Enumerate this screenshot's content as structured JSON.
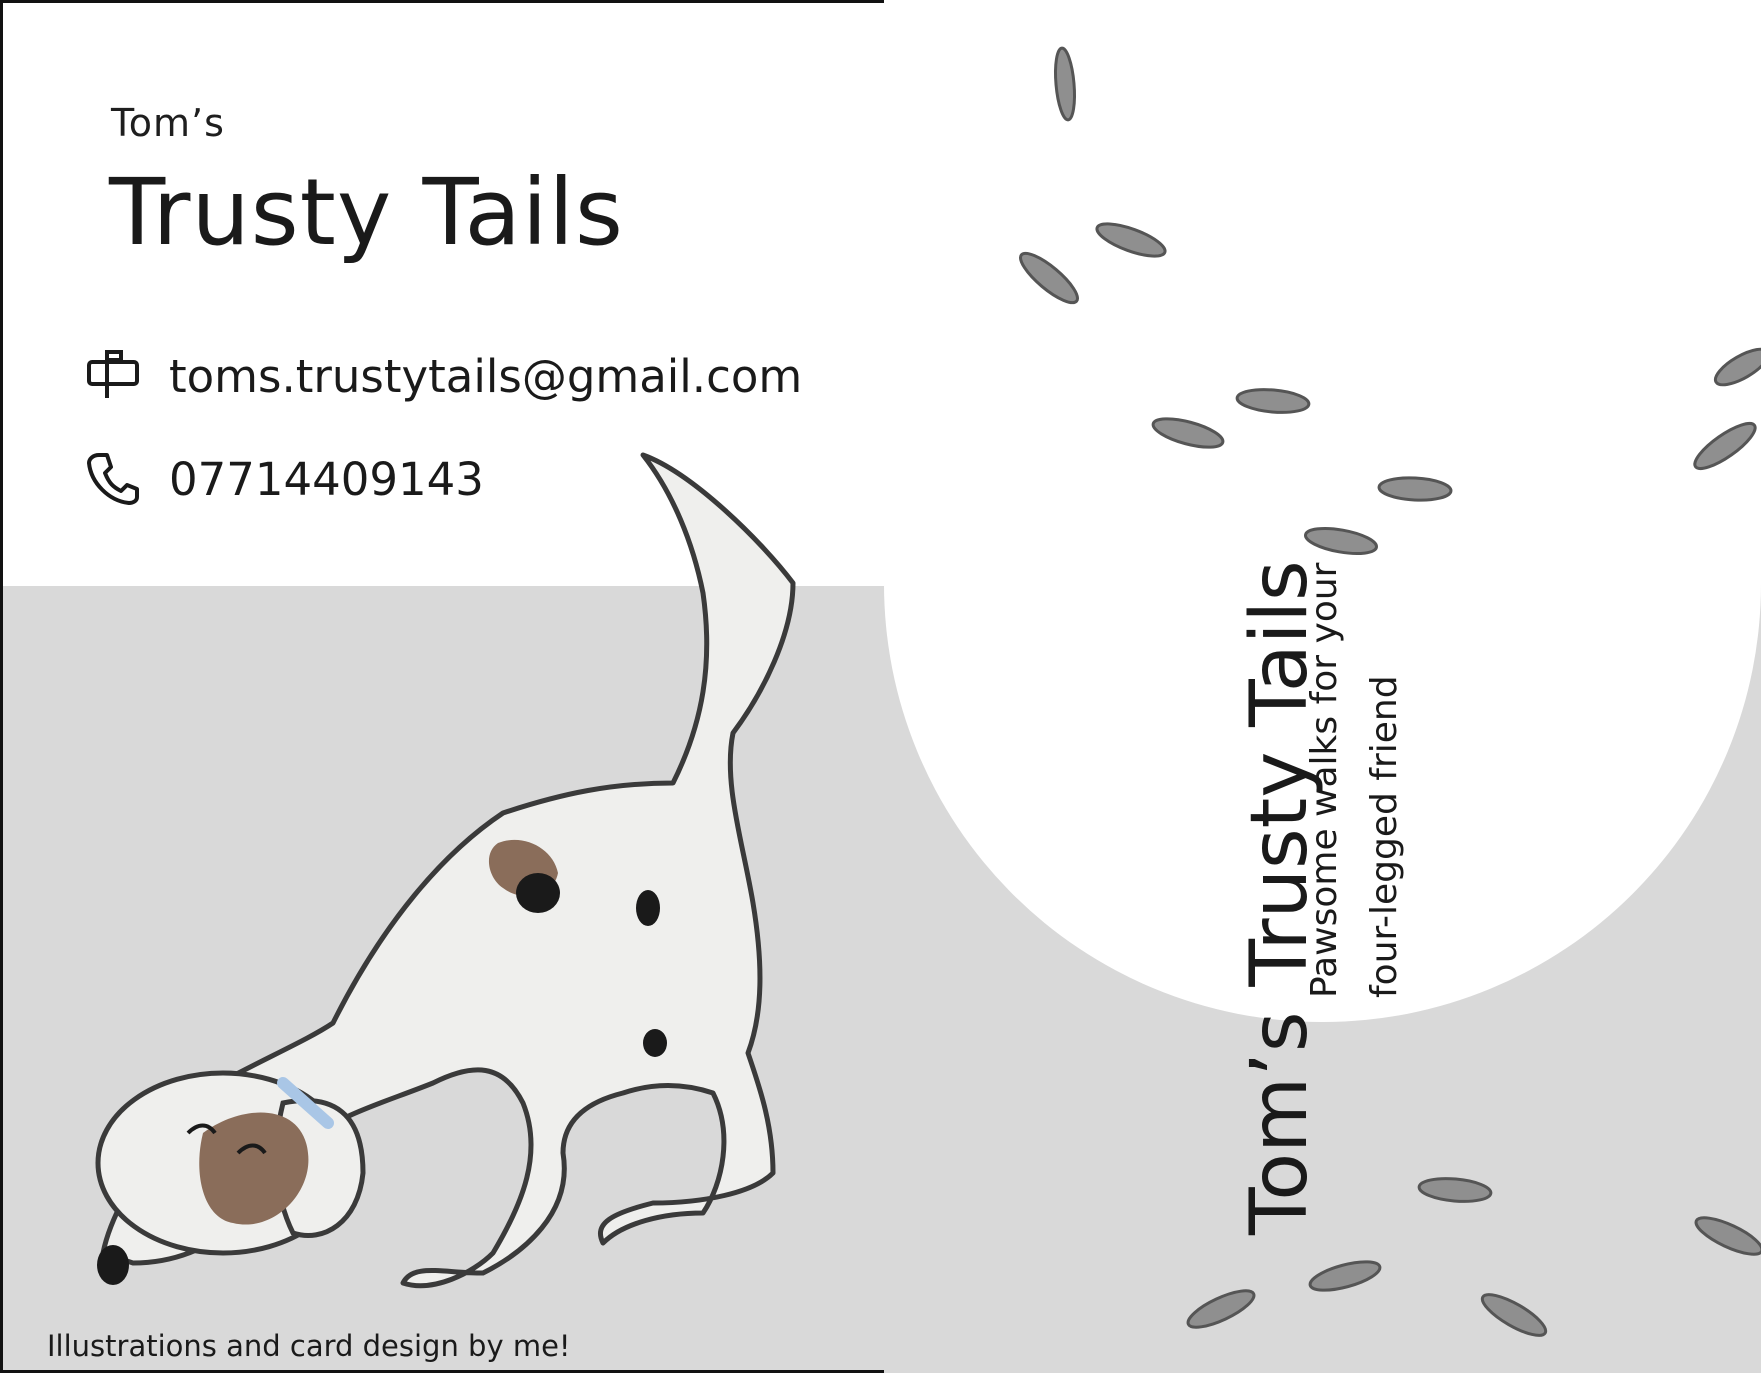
{
  "front": {
    "brand_small": "Tom’s",
    "brand_large": "Trusty Tails",
    "email": "toms.trustytails@gmail.com",
    "phone": "07714409143",
    "credit": "Illustrations and card design by me!",
    "icons": {
      "email": "mailbox-icon",
      "phone": "phone-icon"
    }
  },
  "back": {
    "title": "Tom’s Trusty Tails",
    "tagline_line1": "Pawsome walks for your",
    "tagline_line2": "four-legged friend"
  },
  "colors": {
    "ground": "#d9d9d9",
    "card": "#ffffff",
    "ink": "#1a1a1a",
    "patch_brown": "#8a6d5a",
    "collar": "#a9c6e6",
    "paw": "#888888"
  }
}
